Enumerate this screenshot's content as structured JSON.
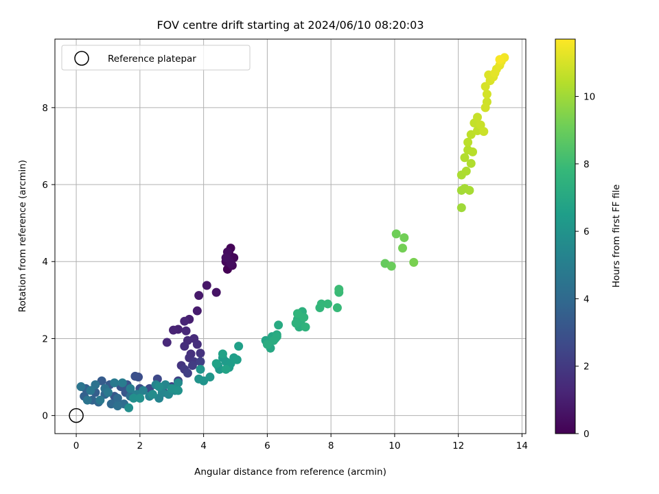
{
  "chart_data": {
    "type": "scatter",
    "title": "FOV centre drift starting at 2024/06/10 08:20:03",
    "xlabel": "Angular distance from reference (arcmin)",
    "ylabel": "Rotation from reference (arcmin)",
    "xlim": [
      -0.67,
      14.12
    ],
    "ylim": [
      -0.47,
      9.78
    ],
    "xticks": [
      0,
      2,
      4,
      6,
      8,
      10,
      12,
      14
    ],
    "yticks": [
      0,
      2,
      4,
      6,
      8
    ],
    "grid": true,
    "legend": {
      "position": "top-left",
      "entries": [
        "Reference platepar"
      ]
    },
    "reference_point": {
      "x": 0,
      "y": 0,
      "label": "Reference platepar"
    },
    "colorbar": {
      "label": "Hours from first FF file",
      "range": [
        0,
        11.7
      ],
      "ticks": [
        0,
        2,
        4,
        6,
        8,
        10
      ],
      "colormap": "viridis"
    },
    "colormap_stops": [
      "#440154",
      "#482878",
      "#3e4989",
      "#31688e",
      "#26828e",
      "#1f9e89",
      "#35b779",
      "#6ece58",
      "#b5de2b",
      "#fde725"
    ],
    "points": [
      [
        4.75,
        3.8,
        0.0
      ],
      [
        4.8,
        4.2,
        0.05
      ],
      [
        4.85,
        4.35,
        0.1
      ],
      [
        4.95,
        4.1,
        0.15
      ],
      [
        4.7,
        4.0,
        0.2
      ],
      [
        4.9,
        3.9,
        0.25
      ],
      [
        4.8,
        4.05,
        0.3
      ],
      [
        4.75,
        4.25,
        0.35
      ],
      [
        4.85,
        3.95,
        0.4
      ],
      [
        4.7,
        4.1,
        0.45
      ],
      [
        4.4,
        3.2,
        0.6
      ],
      [
        4.1,
        3.38,
        0.7
      ],
      [
        3.85,
        3.12,
        0.8
      ],
      [
        3.8,
        2.72,
        0.9
      ],
      [
        3.55,
        2.5,
        1.0
      ],
      [
        3.2,
        2.24,
        1.1
      ],
      [
        3.05,
        2.22,
        1.15
      ],
      [
        3.4,
        2.45,
        1.2
      ],
      [
        3.45,
        2.2,
        1.3
      ],
      [
        2.85,
        1.9,
        1.35
      ],
      [
        3.5,
        1.95,
        1.4
      ],
      [
        3.7,
        2.0,
        1.45
      ],
      [
        3.4,
        1.8,
        1.5
      ],
      [
        3.8,
        1.85,
        1.55
      ],
      [
        3.6,
        1.6,
        1.6
      ],
      [
        3.55,
        1.5,
        1.7
      ],
      [
        3.9,
        1.62,
        1.75
      ],
      [
        3.3,
        1.3,
        1.8
      ],
      [
        3.7,
        1.4,
        1.9
      ],
      [
        3.4,
        1.2,
        2.0
      ],
      [
        3.65,
        1.3,
        2.1
      ],
      [
        3.5,
        1.1,
        2.2
      ],
      [
        3.9,
        1.4,
        2.25
      ],
      [
        3.2,
        0.9,
        2.3
      ],
      [
        3.0,
        0.75,
        2.4
      ],
      [
        2.75,
        0.6,
        2.5
      ],
      [
        2.55,
        0.95,
        2.6
      ],
      [
        2.3,
        0.7,
        2.7
      ],
      [
        1.95,
        1.0,
        2.8
      ],
      [
        2.0,
        0.7,
        2.85
      ],
      [
        1.85,
        1.02,
        2.9
      ],
      [
        1.6,
        0.8,
        3.0
      ],
      [
        1.4,
        0.75,
        3.1
      ],
      [
        1.55,
        0.6,
        3.15
      ],
      [
        1.2,
        0.5,
        3.2
      ],
      [
        1.05,
        0.8,
        3.3
      ],
      [
        0.8,
        0.9,
        3.4
      ],
      [
        0.6,
        0.6,
        3.5
      ],
      [
        0.3,
        0.7,
        3.55
      ],
      [
        0.25,
        0.5,
        3.6
      ],
      [
        0.5,
        0.4,
        3.7
      ],
      [
        0.7,
        0.35,
        3.8
      ],
      [
        0.9,
        0.55,
        3.85
      ],
      [
        1.1,
        0.3,
        3.9
      ],
      [
        1.3,
        0.45,
        4.0
      ],
      [
        1.5,
        0.3,
        4.1
      ],
      [
        1.7,
        0.5,
        4.2
      ],
      [
        1.3,
        0.25,
        4.3
      ],
      [
        0.9,
        0.7,
        4.35
      ],
      [
        0.6,
        0.8,
        4.4
      ],
      [
        0.35,
        0.4,
        4.5
      ],
      [
        0.15,
        0.75,
        4.55
      ],
      [
        0.45,
        0.65,
        4.6
      ],
      [
        0.75,
        0.4,
        4.7
      ],
      [
        1.0,
        0.6,
        4.75
      ],
      [
        1.2,
        0.85,
        4.8
      ],
      [
        1.45,
        0.85,
        4.9
      ],
      [
        1.7,
        0.7,
        5.0
      ],
      [
        1.9,
        0.55,
        5.05
      ],
      [
        2.1,
        0.65,
        5.1
      ],
      [
        2.3,
        0.5,
        5.2
      ],
      [
        2.5,
        0.8,
        5.25
      ],
      [
        2.6,
        0.45,
        5.3
      ],
      [
        2.7,
        0.6,
        5.35
      ],
      [
        2.8,
        0.8,
        5.4
      ],
      [
        2.9,
        0.55,
        5.5
      ],
      [
        3.1,
        0.65,
        5.55
      ],
      [
        3.2,
        0.85,
        5.6
      ],
      [
        2.4,
        0.55,
        5.65
      ],
      [
        2.6,
        0.75,
        5.7
      ],
      [
        1.65,
        0.2,
        5.75
      ],
      [
        1.8,
        0.45,
        5.8
      ],
      [
        2.0,
        0.45,
        5.85
      ],
      [
        3.0,
        0.7,
        5.9
      ],
      [
        3.2,
        0.65,
        5.95
      ],
      [
        3.85,
        0.95,
        6.0
      ],
      [
        4.0,
        0.9,
        6.05
      ],
      [
        3.9,
        1.2,
        6.1
      ],
      [
        4.2,
        1.0,
        6.15
      ],
      [
        4.45,
        1.3,
        6.2
      ],
      [
        4.5,
        1.2,
        6.25
      ],
      [
        4.6,
        1.5,
        6.3
      ],
      [
        4.7,
        1.4,
        6.35
      ],
      [
        4.8,
        1.25,
        6.4
      ],
      [
        4.85,
        1.35,
        6.45
      ],
      [
        4.95,
        1.5,
        6.5
      ],
      [
        5.05,
        1.45,
        6.55
      ],
      [
        5.1,
        1.8,
        6.6
      ],
      [
        4.6,
        1.6,
        6.65
      ],
      [
        4.4,
        1.35,
        6.7
      ],
      [
        4.7,
        1.2,
        6.75
      ],
      [
        5.95,
        1.95,
        6.8
      ],
      [
        6.05,
        1.9,
        6.85
      ],
      [
        6.15,
        2.05,
        6.9
      ],
      [
        6.1,
        1.75,
        6.95
      ],
      [
        6.25,
        2.0,
        7.0
      ],
      [
        6.3,
        2.1,
        7.05
      ],
      [
        6.35,
        2.35,
        7.1
      ],
      [
        6.3,
        2.05,
        7.15
      ],
      [
        6.2,
        1.95,
        7.2
      ],
      [
        6.0,
        1.85,
        7.25
      ],
      [
        6.95,
        2.5,
        7.3
      ],
      [
        7.0,
        2.3,
        7.35
      ],
      [
        7.1,
        2.7,
        7.4
      ],
      [
        7.05,
        2.45,
        7.45
      ],
      [
        6.9,
        2.4,
        7.5
      ],
      [
        7.2,
        2.3,
        7.55
      ],
      [
        7.15,
        2.55,
        7.6
      ],
      [
        6.95,
        2.65,
        7.65
      ],
      [
        7.65,
        2.8,
        7.7
      ],
      [
        7.7,
        2.9,
        7.75
      ],
      [
        7.9,
        2.9,
        7.8
      ],
      [
        8.2,
        2.8,
        7.85
      ],
      [
        8.25,
        3.2,
        7.9
      ],
      [
        8.25,
        3.28,
        7.95
      ],
      [
        9.7,
        3.95,
        8.9
      ],
      [
        9.9,
        3.88,
        9.0
      ],
      [
        10.05,
        4.72,
        9.1
      ],
      [
        10.3,
        4.62,
        9.15
      ],
      [
        10.25,
        4.35,
        9.2
      ],
      [
        10.6,
        3.98,
        9.3
      ],
      [
        12.1,
        5.4,
        10.0
      ],
      [
        12.1,
        5.85,
        10.05
      ],
      [
        12.2,
        5.9,
        10.1
      ],
      [
        12.35,
        5.85,
        10.15
      ],
      [
        12.1,
        6.25,
        10.2
      ],
      [
        12.25,
        6.35,
        10.25
      ],
      [
        12.4,
        6.55,
        10.3
      ],
      [
        12.2,
        6.7,
        10.35
      ],
      [
        12.3,
        6.9,
        10.4
      ],
      [
        12.45,
        6.85,
        10.45
      ],
      [
        12.3,
        7.1,
        10.5
      ],
      [
        12.4,
        7.3,
        10.55
      ],
      [
        12.6,
        7.4,
        10.6
      ],
      [
        12.5,
        7.6,
        10.65
      ],
      [
        12.6,
        7.75,
        10.7
      ],
      [
        12.7,
        7.55,
        10.75
      ],
      [
        12.8,
        7.38,
        10.8
      ],
      [
        12.9,
        8.15,
        10.85
      ],
      [
        12.85,
        8.0,
        10.9
      ],
      [
        12.9,
        8.35,
        10.95
      ],
      [
        12.85,
        8.55,
        11.0
      ],
      [
        13.0,
        8.7,
        11.05
      ],
      [
        12.95,
        8.85,
        11.1
      ],
      [
        13.1,
        8.8,
        11.15
      ],
      [
        13.2,
        9.0,
        11.2
      ],
      [
        13.15,
        8.9,
        11.25
      ],
      [
        13.3,
        9.1,
        11.3
      ],
      [
        13.35,
        9.2,
        11.4
      ],
      [
        13.45,
        9.3,
        11.5
      ],
      [
        13.3,
        9.25,
        11.6
      ]
    ]
  }
}
